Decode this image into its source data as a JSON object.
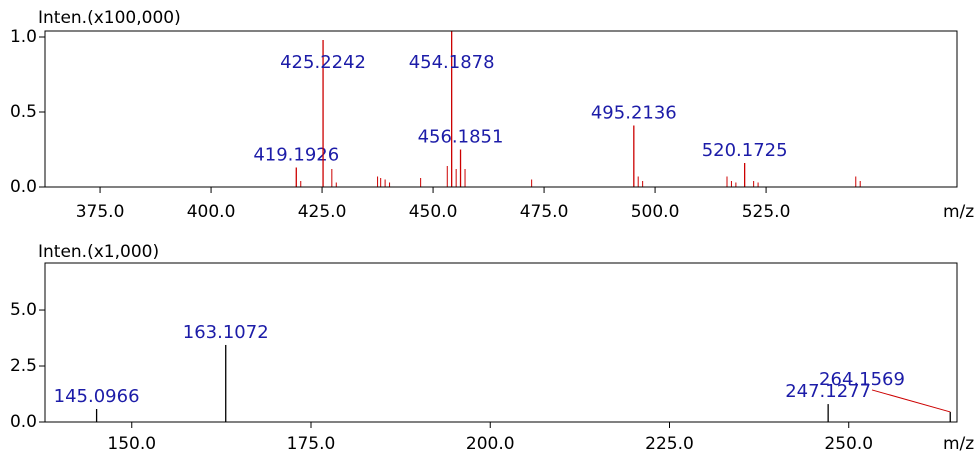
{
  "chart_data": [
    {
      "type": "spectrum",
      "ylabel": "Inten.(x100,000)",
      "xlabel": "m/z",
      "color": "#cc0000",
      "label_color": "#1c1ca8",
      "xlim": [
        362.6,
        568
      ],
      "ylim": [
        0,
        1.04
      ],
      "xticks": [
        {
          "value": 375,
          "label": "375.0"
        },
        {
          "value": 400,
          "label": "400.0"
        },
        {
          "value": 425,
          "label": "425.0"
        },
        {
          "value": 450,
          "label": "450.0"
        },
        {
          "value": 475,
          "label": "475.0"
        },
        {
          "value": 500,
          "label": "500.0"
        },
        {
          "value": 525,
          "label": "525.0"
        }
      ],
      "yticks": [
        {
          "value": 0,
          "label": "0.0"
        },
        {
          "value": 0.5,
          "label": "0.5"
        },
        {
          "value": 1,
          "label": "1.0"
        }
      ],
      "x": [
        419.1926,
        425.2242,
        454.1878,
        456.1851,
        495.2136,
        520.1725
      ],
      "values": [
        0.13,
        0.98,
        1.04,
        0.25,
        0.41,
        0.16
      ],
      "minor_x": [
        420.2,
        427.2,
        428.2,
        437.5,
        438.2,
        439.2,
        440.2,
        447.2,
        453.2,
        455.2,
        457.2,
        472.2,
        496.2,
        497.2,
        516.2,
        517.2,
        518.2,
        522.2,
        523.2,
        545.2,
        546.2
      ],
      "minor_values": [
        0.04,
        0.12,
        0.03,
        0.07,
        0.06,
        0.05,
        0.03,
        0.06,
        0.14,
        0.12,
        0.12,
        0.05,
        0.07,
        0.04,
        0.07,
        0.04,
        0.03,
        0.04,
        0.03,
        0.07,
        0.04
      ]
    },
    {
      "type": "spectrum",
      "ylabel": "Inten.(x1,000)",
      "xlabel": "m/z",
      "color": "#000000",
      "label_color": "#1c1ca8",
      "xlim": [
        137.9,
        265.1
      ],
      "ylim": [
        0,
        7.1
      ],
      "xticks": [
        {
          "value": 150,
          "label": "150.0"
        },
        {
          "value": 175,
          "label": "175.0"
        },
        {
          "value": 200,
          "label": "200.0"
        },
        {
          "value": 225,
          "label": "225.0"
        },
        {
          "value": 250,
          "label": "250.0"
        }
      ],
      "yticks": [
        {
          "value": 0,
          "label": "0.0"
        },
        {
          "value": 2.5,
          "label": "2.5"
        },
        {
          "value": 5,
          "label": "5.0"
        }
      ],
      "x": [
        145.0966,
        163.1072,
        247.1277,
        264.1569
      ],
      "values": [
        0.58,
        3.44,
        0.8,
        0.45
      ],
      "minor_x": [],
      "minor_values": []
    }
  ]
}
